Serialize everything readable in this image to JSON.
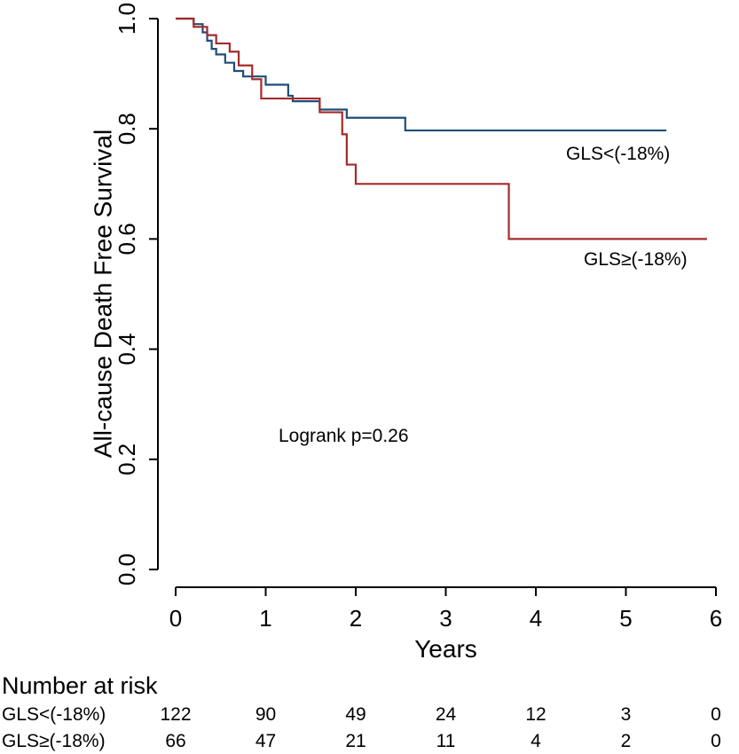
{
  "chart_data": {
    "type": "line",
    "subtype": "kaplan-meier-step",
    "ylabel": "All-cause Death Free Survival",
    "xlabel": "Years",
    "xlim": [
      0,
      6
    ],
    "ylim": [
      0,
      1
    ],
    "x_ticks": [
      "0",
      "1",
      "2",
      "3",
      "4",
      "5",
      "6"
    ],
    "y_ticks": [
      "0.0",
      "0.2",
      "0.4",
      "0.6",
      "0.8",
      "1.0"
    ],
    "grid": false,
    "annotation": "Logrank p=0.26",
    "series": [
      {
        "name": "GLS<(-18%)",
        "color": "#1f4e79",
        "x": [
          0,
          0.2,
          0.3,
          0.35,
          0.4,
          0.45,
          0.55,
          0.65,
          0.75,
          1.0,
          1.25,
          1.3,
          1.6,
          1.9,
          2.55,
          5.45
        ],
        "y": [
          1.0,
          0.99,
          0.975,
          0.96,
          0.945,
          0.935,
          0.92,
          0.905,
          0.895,
          0.88,
          0.86,
          0.85,
          0.835,
          0.82,
          0.797,
          0.797
        ]
      },
      {
        "name": "GLS≥(-18%)",
        "color": "#a52a2a",
        "x": [
          0,
          0.2,
          0.35,
          0.45,
          0.6,
          0.7,
          0.85,
          0.95,
          1.6,
          1.85,
          1.9,
          1.95,
          2.0,
          3.7,
          5.9
        ],
        "y": [
          1.0,
          0.985,
          0.97,
          0.955,
          0.94,
          0.915,
          0.89,
          0.855,
          0.83,
          0.79,
          0.735,
          0.735,
          0.7,
          0.6,
          0.6
        ]
      }
    ],
    "number_at_risk": {
      "title": "Number at risk",
      "rows": [
        {
          "label": "GLS<(-18%)",
          "values": [
            "122",
            "90",
            "49",
            "24",
            "12",
            "3",
            "0"
          ]
        },
        {
          "label": "GLS≥(-18%)",
          "values": [
            "66",
            "47",
            "21",
            "11",
            "4",
            "2",
            "0"
          ]
        }
      ]
    }
  }
}
